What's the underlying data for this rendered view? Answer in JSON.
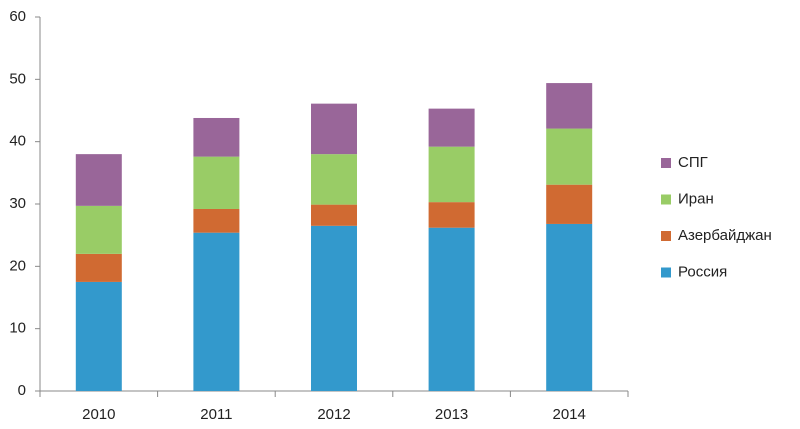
{
  "chart_data": {
    "type": "stacked_bar",
    "categories": [
      "2010",
      "2011",
      "2012",
      "2013",
      "2014"
    ],
    "series": [
      {
        "name": "Россия",
        "color": "#3399cc",
        "values": [
          17.5,
          25.4,
          26.5,
          26.2,
          26.8
        ]
      },
      {
        "name": "Азербайджан",
        "color": "#d06a32",
        "values": [
          4.5,
          3.8,
          3.4,
          4.1,
          6.3
        ]
      },
      {
        "name": "Иран",
        "color": "#99cc66",
        "values": [
          7.7,
          8.4,
          8.1,
          8.9,
          9.0
        ]
      },
      {
        "name": "СПГ",
        "color": "#996699",
        "values": [
          8.3,
          6.2,
          8.1,
          6.1,
          7.3
        ]
      }
    ],
    "ylim": [
      0,
      60
    ],
    "yticks": [
      0,
      10,
      20,
      30,
      40,
      50,
      60
    ],
    "grid": false,
    "legend": "right"
  }
}
